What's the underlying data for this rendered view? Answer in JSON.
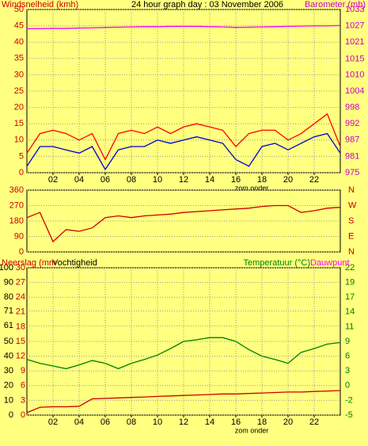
{
  "chart_data": [
    {
      "type": "line",
      "title": "24 hour graph day : 03 November 2006",
      "ylabel": "Windsnelheid (kmh)",
      "y2label": "Barometer (mb)",
      "annotation": "zom onder",
      "axis_colors": {
        "y": "#cc0000",
        "y2": "#cc00cc"
      },
      "grid": true,
      "xlim": [
        0,
        24
      ],
      "xticks": [
        {
          "value": 2,
          "label": "02"
        },
        {
          "value": 4,
          "label": "04"
        },
        {
          "value": 6,
          "label": "06"
        },
        {
          "value": 8,
          "label": "08"
        },
        10,
        12,
        14,
        16,
        18,
        20,
        22
      ],
      "ylim": [
        0,
        50
      ],
      "yticks": [
        0,
        5,
        10,
        15,
        20,
        25,
        30,
        35,
        40,
        45,
        50
      ],
      "y2lim": [
        975,
        1033
      ],
      "y2ticks": [
        975,
        {
          "value": 980.8,
          "label": "981"
        },
        {
          "value": 986.6,
          "label": "987"
        },
        {
          "value": 992.4,
          "label": "992"
        },
        {
          "value": 998.2,
          "label": "998"
        },
        1004,
        {
          "value": 1009.8,
          "label": "1010"
        },
        {
          "value": 1015.4,
          "label": "1015"
        },
        {
          "value": 1021.4,
          "label": "1021"
        },
        {
          "value": 1027.2,
          "label": "1027"
        },
        1033
      ],
      "x": [
        0,
        1,
        2,
        3,
        4,
        5,
        6,
        7,
        8,
        9,
        10,
        11,
        12,
        13,
        14,
        15,
        16,
        17,
        18,
        19,
        20,
        21,
        22,
        23,
        24
      ],
      "series": [
        {
          "name": "gust",
          "color": "#ff0000",
          "axis": "y",
          "values": [
            6,
            12,
            13,
            12,
            10,
            12,
            4,
            12,
            13,
            12,
            14,
            12,
            14,
            15,
            14,
            13,
            8,
            12,
            13,
            13,
            10,
            12,
            15,
            18,
            8
          ]
        },
        {
          "name": "average",
          "color": "#0000cc",
          "axis": "y",
          "values": [
            2,
            8,
            8,
            7,
            6,
            8,
            1,
            7,
            8,
            8,
            10,
            9,
            10,
            11,
            10,
            9,
            4,
            2,
            8,
            9,
            7,
            9,
            11,
            12,
            6
          ]
        },
        {
          "name": "barometer",
          "color": "#ff00ff",
          "axis": "y2",
          "values": [
            1026.2,
            1026.2,
            1026.3,
            1026.3,
            1026.4,
            1026.5,
            1026.6,
            1026.7,
            1026.8,
            1026.9,
            1026.9,
            1027,
            1027,
            1027,
            1026.9,
            1026.8,
            1026.6,
            1026.7,
            1026.8,
            1026.9,
            1027,
            1027.1,
            1027.2,
            1027.2,
            1027.3
          ]
        }
      ]
    },
    {
      "type": "line",
      "axis_colors": {
        "y": "#cc0000",
        "y2": "#cc0000"
      },
      "grid": true,
      "xlim": [
        0,
        24
      ],
      "ylim": [
        0,
        360
      ],
      "yticks": [
        0,
        90,
        180,
        270,
        360
      ],
      "y2lim": [
        0,
        360
      ],
      "y2ticks": [
        {
          "value": 360,
          "label": "N"
        },
        {
          "value": 270,
          "label": "W"
        },
        {
          "value": 180,
          "label": "S"
        },
        {
          "value": 90,
          "label": "E"
        },
        {
          "value": 0,
          "label": "N"
        }
      ],
      "x": [
        0,
        1,
        2,
        3,
        4,
        5,
        6,
        7,
        8,
        9,
        10,
        11,
        12,
        13,
        14,
        15,
        16,
        17,
        18,
        19,
        20,
        21,
        22,
        23,
        24
      ],
      "series": [
        {
          "name": "direction",
          "color": "#cc0000",
          "axis": "y",
          "values": [
            200,
            230,
            60,
            130,
            120,
            140,
            200,
            210,
            200,
            210,
            215,
            220,
            230,
            235,
            240,
            245,
            250,
            255,
            265,
            270,
            270,
            230,
            240,
            255,
            260
          ]
        }
      ]
    },
    {
      "type": "line",
      "ylabel": "Vochtigheid",
      "y3label": "Neerslag (mm",
      "y2label": "Temperatuur (°C)",
      "y2label_extra": "Dauwpunt",
      "annotation": "zom onder",
      "axis_colors": {
        "y": "#000000",
        "y2": "#008000",
        "y3": "#cc0000",
        "extra": "#ff00ff"
      },
      "grid": true,
      "xlim": [
        0,
        24
      ],
      "xticks": [
        {
          "value": 2,
          "label": "02"
        },
        {
          "value": 4,
          "label": "04"
        },
        {
          "value": 6,
          "label": "06"
        },
        {
          "value": 8,
          "label": "08"
        },
        10,
        12,
        14,
        16,
        18,
        20,
        22
      ],
      "ylim": [
        0,
        100
      ],
      "yticks": [
        0,
        10,
        20,
        30,
        40,
        50,
        {
          "value": 60.6,
          "label": "61"
        },
        {
          "value": 70.6,
          "label": "71"
        },
        80,
        90,
        100
      ],
      "y3lim": [
        0,
        30
      ],
      "y3ticks": [
        0,
        3,
        6,
        9,
        12,
        15,
        18,
        21,
        24,
        27,
        30
      ],
      "y2lim": [
        -5,
        22
      ],
      "y2ticks": [
        -5,
        {
          "value": -2.3,
          "label": "-2"
        },
        {
          "value": 0.4,
          "label": "0"
        },
        {
          "value": 3.1,
          "label": "3"
        },
        {
          "value": 5.8,
          "label": "6"
        },
        {
          "value": 8.5,
          "label": "9"
        },
        {
          "value": 11.2,
          "label": "11"
        },
        {
          "value": 13.9,
          "label": "14"
        },
        {
          "value": 16.6,
          "label": "17"
        },
        {
          "value": 19.3,
          "label": "19"
        },
        22
      ],
      "x": [
        0,
        1,
        2,
        3,
        4,
        5,
        6,
        7,
        8,
        9,
        10,
        11,
        12,
        13,
        14,
        15,
        16,
        17,
        18,
        19,
        20,
        21,
        22,
        23,
        24
      ],
      "series": [
        {
          "name": "temperature",
          "color": "#008000",
          "axis": "y2",
          "values": [
            5.2,
            4.5,
            4,
            3.5,
            4.2,
            5,
            4.5,
            3.5,
            4.5,
            5.2,
            6,
            7.2,
            8.5,
            8.8,
            9.2,
            9.2,
            8.5,
            7,
            5.8,
            5.2,
            4.5,
            6.5,
            7.2,
            8,
            8.3
          ]
        },
        {
          "name": "rain",
          "color": "#cc0000",
          "axis": "y3",
          "values": [
            0.5,
            1.6,
            1.7,
            1.7,
            1.8,
            3.3,
            3.4,
            3.5,
            3.6,
            3.7,
            3.8,
            3.9,
            4,
            4.1,
            4.2,
            4.3,
            4.3,
            4.4,
            4.5,
            4.6,
            4.7,
            4.7,
            4.8,
            4.9,
            5
          ]
        }
      ]
    }
  ]
}
